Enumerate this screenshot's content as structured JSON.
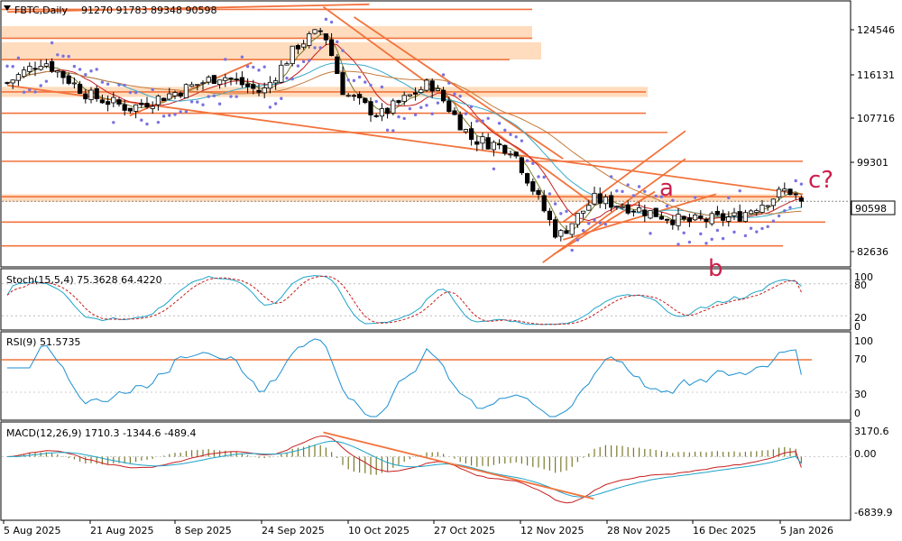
{
  "header": {
    "symbol": "FBTC,Daily",
    "ohlc": "91270 91783 89348 90598"
  },
  "colors": {
    "bull": "#ffffff",
    "bear": "#000000",
    "level_line": "#f2733c",
    "zone_fill": "#ffd6b3",
    "psar": "#7a72e0",
    "ma_fast": "#c81e1e",
    "ma_mid": "#3aa9c6",
    "ma_slow": "#c47a3a",
    "ma_short": "#7a7a2a",
    "stoch_main": "#1ca3c8",
    "stoch_signal": "#c81e1e",
    "rsi": "#1c8fd1",
    "macd_hist": "#7a7a2a",
    "macd_line": "#c81e1e",
    "macd_signal": "#1ca3c8",
    "annotation": "#cc1f4a"
  },
  "price_axis": {
    "ticks": [
      "124546",
      "116131",
      "107716",
      "99301",
      "82636"
    ],
    "current_price": "90598"
  },
  "annotations": {
    "a": "a",
    "b": "b",
    "c": "c?"
  },
  "stoch": {
    "title": "Stoch(15,5,4) 75.3628 64.4220",
    "ticks": [
      "100",
      "80",
      "20",
      "0"
    ]
  },
  "rsi": {
    "title": "RSI(9) 51.5735",
    "ticks": [
      "100",
      "70",
      "30",
      "0"
    ]
  },
  "macd": {
    "title": "MACD(12,26,9) 1710.3 -1344.6 -489.4",
    "ticks": [
      "3170.6",
      "0.00",
      "-6839.9"
    ]
  },
  "x_axis": {
    "labels": [
      "5 Aug 2025",
      "21 Aug 2025",
      "8 Sep 2025",
      "24 Sep 2025",
      "10 Oct 2025",
      "27 Oct 2025",
      "12 Nov 2025",
      "28 Nov 2025",
      "16 Dec 2025",
      "5 Jan 2026"
    ]
  },
  "chart_data": {
    "type": "candlestick",
    "timeframe": "Daily",
    "price_ylim": [
      78000,
      130000
    ],
    "close_path": [
      {
        "date": "2025-08-05",
        "close": 114000
      },
      {
        "date": "2025-08-12",
        "close": 118500
      },
      {
        "date": "2025-08-21",
        "close": 111500
      },
      {
        "date": "2025-08-29",
        "close": 109000
      },
      {
        "date": "2025-09-08",
        "close": 112500
      },
      {
        "date": "2025-09-16",
        "close": 115500
      },
      {
        "date": "2025-09-24",
        "close": 112000
      },
      {
        "date": "2025-10-01",
        "close": 121500
      },
      {
        "date": "2025-10-06",
        "close": 124500
      },
      {
        "date": "2025-10-10",
        "close": 112000
      },
      {
        "date": "2025-10-17",
        "close": 107500
      },
      {
        "date": "2025-10-27",
        "close": 114000
      },
      {
        "date": "2025-11-04",
        "close": 103000
      },
      {
        "date": "2025-11-12",
        "close": 101000
      },
      {
        "date": "2025-11-21",
        "close": 83500
      },
      {
        "date": "2025-11-28",
        "close": 91000
      },
      {
        "date": "2025-12-05",
        "close": 89500
      },
      {
        "date": "2025-12-16",
        "close": 86500
      },
      {
        "date": "2025-12-26",
        "close": 87500
      },
      {
        "date": "2026-01-05",
        "close": 93000
      },
      {
        "date": "2026-01-08",
        "close": 90598
      }
    ],
    "last_bar": {
      "open": 91270,
      "high": 91783,
      "low": 89348,
      "close": 90598
    },
    "horizontal_levels": [
      128500,
      122800,
      118600,
      112200,
      108000,
      104200,
      98500,
      91500,
      86500,
      81800
    ],
    "stoch_last": {
      "k": 75.3628,
      "d": 64.422
    },
    "rsi_last": 51.5735,
    "rsi_levels": [
      70,
      30
    ],
    "macd_last": {
      "macd": 1710.3,
      "signal": -1344.6,
      "histogram": -489.4
    },
    "macd_ylim": [
      -6839.9,
      3170.6
    ]
  }
}
